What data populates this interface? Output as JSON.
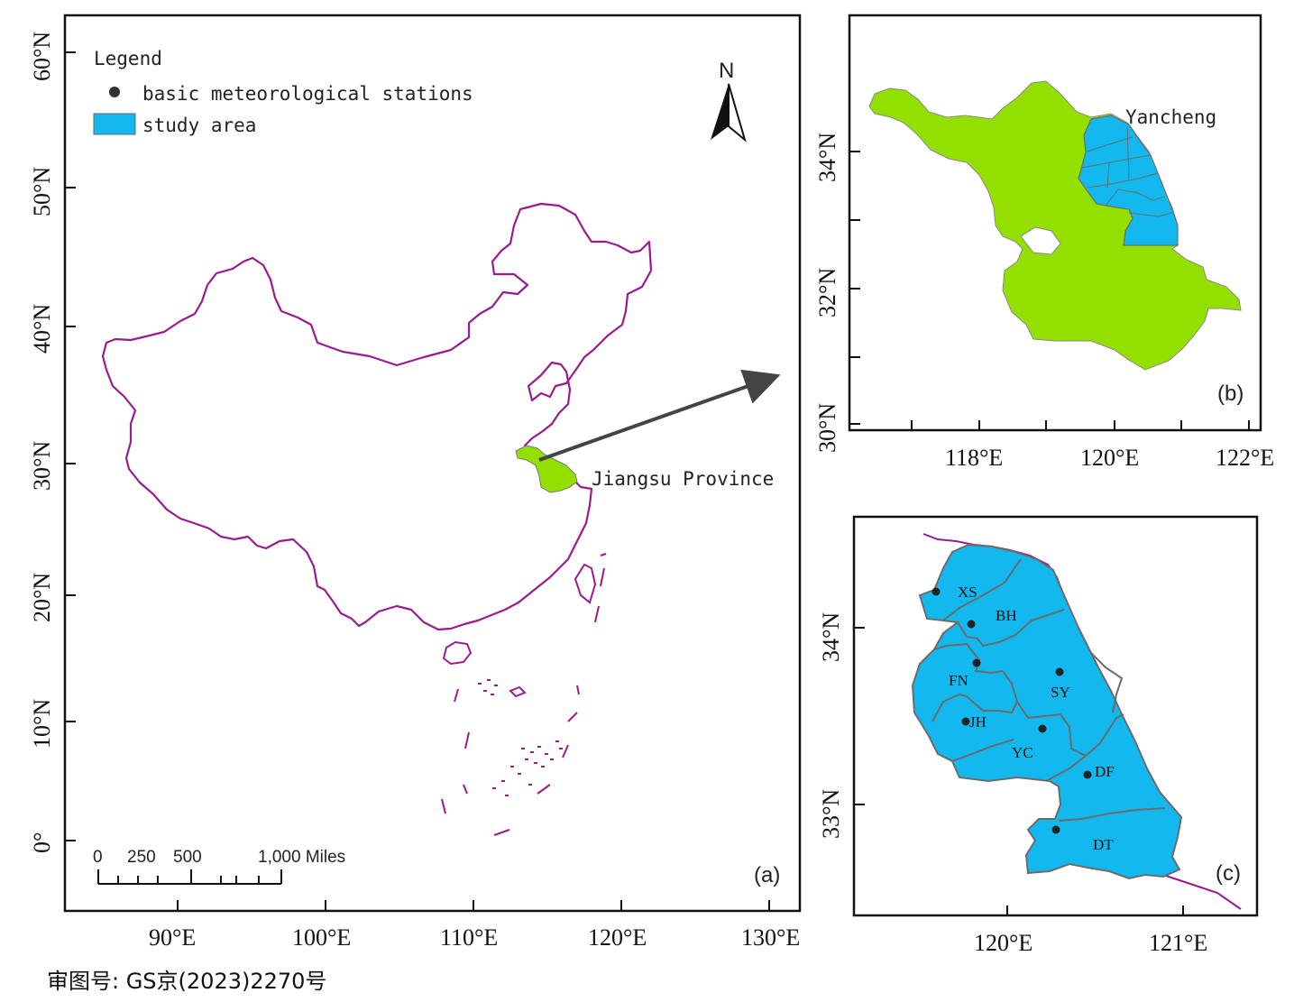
{
  "colors": {
    "boundary": "#9a1b8e",
    "jiangsu_fill": "#93e000",
    "study_area_fill": "#13b8ee",
    "district_border": "#6b6b6b",
    "arrow": "#444444"
  },
  "panel_a": {
    "panel_label": "(a)",
    "legend": {
      "title": "Legend",
      "station_label": "basic meteorological stations",
      "study_area_label": "study area"
    },
    "north_label": "N",
    "callout_label": "Jiangsu Province",
    "scale_bar": {
      "labels": [
        "0",
        "250",
        "500",
        "1,000 Miles"
      ]
    },
    "x_ticks": [
      "90°E",
      "100°E",
      "110°E",
      "120°E",
      "130°E"
    ],
    "y_ticks": [
      "0°",
      "10°N",
      "20°N",
      "30°N",
      "40°N",
      "50°N",
      "60°N"
    ]
  },
  "panel_b": {
    "panel_label": "(b)",
    "region_label": "Yancheng",
    "x_ticks": [
      "118°E",
      "120°E",
      "122°E"
    ],
    "y_ticks": [
      "30°N",
      "32°N",
      "34°N"
    ]
  },
  "panel_c": {
    "panel_label": "(c)",
    "x_ticks": [
      "120°E",
      "121°E"
    ],
    "y_ticks": [
      "33°N",
      "34°N"
    ],
    "districts": [
      "XS",
      "BH",
      "FN",
      "SY",
      "JH",
      "YC",
      "DF",
      "DT"
    ]
  },
  "approval_number": "审图号: GS京(2023)2270号"
}
